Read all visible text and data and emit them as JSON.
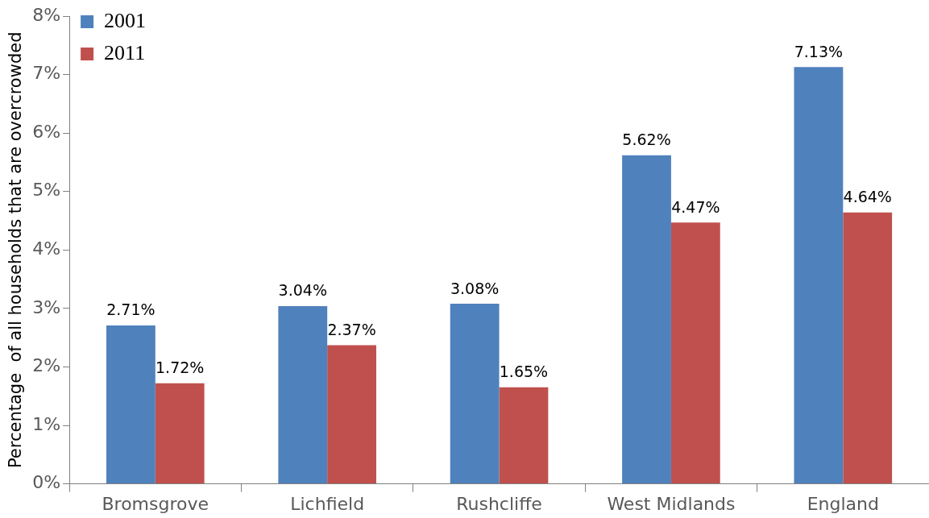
{
  "chart_data": {
    "type": "bar",
    "ylabel": "Percentage  of all households that are overcrowded",
    "categories": [
      "Bromsgrove",
      "Lichfield",
      "Rushcliffe",
      "West Midlands",
      "England"
    ],
    "series": [
      {
        "name": "2001",
        "color": "#4f81bd",
        "values": [
          2.71,
          3.04,
          3.08,
          5.62,
          7.13
        ],
        "value_labels": [
          "2.71%",
          "3.04%",
          "3.08%",
          "5.62%",
          "7.13%"
        ]
      },
      {
        "name": "2011",
        "color": "#c0504d",
        "values": [
          1.72,
          2.37,
          1.65,
          4.47,
          4.64
        ],
        "value_labels": [
          "1.72%",
          "2.37%",
          "1.65%",
          "4.47%",
          "4.64%"
        ]
      }
    ],
    "ylim": [
      0,
      8
    ],
    "yticks": [
      {
        "value": 0,
        "label": "0%"
      },
      {
        "value": 1,
        "label": "1%"
      },
      {
        "value": 2,
        "label": "2%"
      },
      {
        "value": 3,
        "label": "3%"
      },
      {
        "value": 4,
        "label": "4%"
      },
      {
        "value": 5,
        "label": "5%"
      },
      {
        "value": 6,
        "label": "6%"
      },
      {
        "value": 7,
        "label": "7%"
      },
      {
        "value": 8,
        "label": "8%"
      }
    ],
    "grid": false,
    "legend": "top left"
  }
}
